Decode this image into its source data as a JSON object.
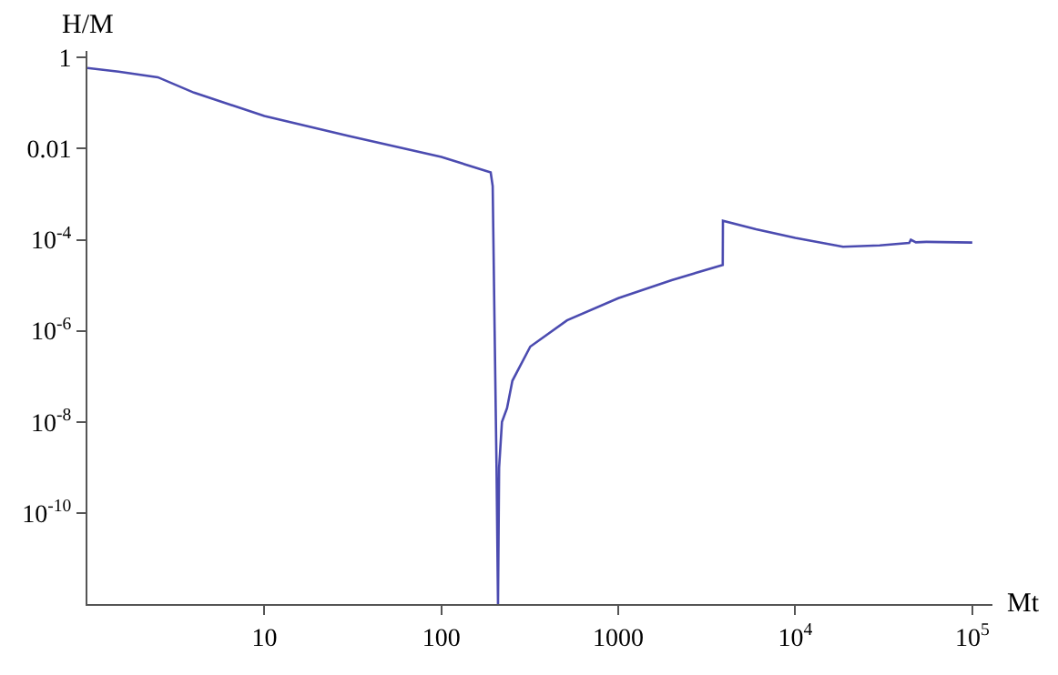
{
  "chart_data": {
    "type": "line",
    "xlabel": "Mt",
    "ylabel": "H/M",
    "log": "xy",
    "marker": "none",
    "line_style": "solid",
    "xlim": [
      1,
      130000
    ],
    "ylim": [
      1e-12,
      1.4
    ],
    "xticks": [
      10,
      100,
      1000,
      {
        "value": 10000,
        "label": "10$^{4}$"
      },
      {
        "value": 100000,
        "label": "10$^{5}$"
      }
    ],
    "yticks": [
      1,
      0.01,
      {
        "value": 0.0001,
        "label": "10$^{-4}$"
      },
      {
        "value": 1e-06,
        "label": "10$^{-6}$"
      },
      {
        "value": 1e-08,
        "label": "10$^{-8}$"
      },
      {
        "value": 1e-10,
        "label": "10$^{-10}$"
      }
    ],
    "series": [
      {
        "color": "#4b4bb0",
        "x": [
          1,
          1.5,
          2.5,
          4,
          10,
          30,
          100,
          190,
          195,
          200,
          205,
          209,
          212,
          220,
          235,
          252,
          318,
          513,
          1000,
          2000,
          3890,
          3900,
          6000,
          10000,
          18600,
          30000,
          44000,
          45000,
          48000,
          55000,
          100000
        ],
        "values": [
          0.59,
          0.49,
          0.37,
          0.17,
          0.052,
          0.019,
          0.0066,
          0.003,
          0.0015,
          1e-06,
          1e-09,
          1e-12,
          1e-09,
          1e-08,
          2e-08,
          8e-08,
          4.5e-07,
          1.7e-06,
          5.2e-06,
          1.3e-05,
          2.8e-05,
          0.00026,
          0.00017,
          0.00011,
          7e-05,
          7.5e-05,
          8.5e-05,
          0.0001,
          8.8e-05,
          9e-05,
          8.7e-05
        ]
      }
    ]
  }
}
